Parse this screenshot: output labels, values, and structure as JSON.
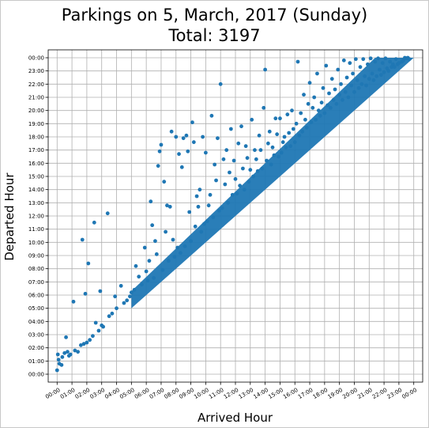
{
  "chart_data": {
    "type": "scatter",
    "title": "Parkings on 5, March, 2017 (Sunday)",
    "subtitle": "Total: 3197",
    "xlabel": "Arrived Hour",
    "ylabel": "Departed Hour",
    "xlim": [
      -0.6,
      24.6
    ],
    "ylim": [
      -0.6,
      24.6
    ],
    "xticks": [
      "00:00",
      "01:00",
      "02:00",
      "03:00",
      "04:00",
      "05:00",
      "06:00",
      "07:00",
      "08:00",
      "09:00",
      "10:00",
      "11:00",
      "12:00",
      "13:00",
      "14:00",
      "15:00",
      "16:00",
      "17:00",
      "18:00",
      "19:00",
      "20:00",
      "21:00",
      "22:00",
      "23:00",
      "00:00"
    ],
    "yticks": [
      "00:00",
      "01:00",
      "02:00",
      "03:00",
      "04:00",
      "05:00",
      "06:00",
      "07:00",
      "08:00",
      "09:00",
      "10:00",
      "11:00",
      "12:00",
      "13:00",
      "14:00",
      "15:00",
      "16:00",
      "17:00",
      "18:00",
      "19:00",
      "20:00",
      "21:00",
      "22:00",
      "23:00",
      "00:00"
    ],
    "grid": true,
    "series": [
      {
        "color": "#1f77b4",
        "points": [
          [
            0.0,
            0.3
          ],
          [
            0.05,
            1.5
          ],
          [
            0.1,
            1.1
          ],
          [
            0.15,
            0.8
          ],
          [
            0.3,
            0.7
          ],
          [
            0.35,
            1.3
          ],
          [
            0.5,
            1.6
          ],
          [
            0.6,
            2.8
          ],
          [
            0.7,
            1.7
          ],
          [
            0.8,
            1.4
          ],
          [
            0.9,
            1.5
          ],
          [
            1.1,
            5.5
          ],
          [
            1.2,
            1.8
          ],
          [
            1.4,
            1.7
          ],
          [
            1.6,
            2.2
          ],
          [
            1.7,
            10.2
          ],
          [
            1.8,
            2.3
          ],
          [
            1.9,
            6.1
          ],
          [
            2.0,
            2.4
          ],
          [
            2.1,
            8.4
          ],
          [
            2.2,
            2.6
          ],
          [
            2.4,
            2.9
          ],
          [
            2.5,
            11.5
          ],
          [
            2.6,
            3.9
          ],
          [
            2.8,
            3.3
          ],
          [
            2.9,
            6.3
          ],
          [
            3.0,
            3.7
          ],
          [
            3.1,
            3.6
          ],
          [
            3.4,
            12.2
          ],
          [
            3.5,
            4.4
          ],
          [
            3.7,
            4.6
          ],
          [
            3.9,
            5.9
          ],
          [
            4.0,
            5.0
          ],
          [
            4.3,
            6.7
          ],
          [
            4.5,
            5.4
          ],
          [
            4.7,
            5.6
          ],
          [
            4.9,
            5.9
          ],
          [
            5.0,
            6.2
          ],
          [
            5.2,
            6.4
          ],
          [
            5.3,
            8.2
          ],
          [
            5.5,
            7.4
          ],
          [
            5.7,
            6.8
          ],
          [
            5.9,
            9.6
          ],
          [
            6.0,
            7.8
          ],
          [
            6.1,
            7.1
          ],
          [
            6.2,
            8.6
          ],
          [
            6.3,
            13.1
          ],
          [
            6.4,
            11.3
          ],
          [
            6.5,
            7.3
          ],
          [
            6.6,
            10.1
          ],
          [
            6.7,
            9.1
          ],
          [
            6.8,
            15.8
          ],
          [
            6.9,
            16.9
          ],
          [
            7.0,
            17.4
          ],
          [
            7.1,
            7.9
          ],
          [
            7.2,
            14.6
          ],
          [
            7.3,
            10.8
          ],
          [
            7.4,
            12.8
          ],
          [
            7.5,
            8.6
          ],
          [
            7.6,
            12.7
          ],
          [
            7.7,
            18.4
          ],
          [
            7.8,
            10.2
          ],
          [
            7.9,
            8.9
          ],
          [
            8.0,
            18.0
          ],
          [
            8.1,
            9.6
          ],
          [
            8.2,
            16.7
          ],
          [
            8.3,
            9.2
          ],
          [
            8.4,
            15.7
          ],
          [
            8.5,
            17.9
          ],
          [
            8.6,
            9.7
          ],
          [
            8.7,
            18.1
          ],
          [
            8.8,
            16.9
          ],
          [
            8.9,
            12.3
          ],
          [
            9.0,
            10.1
          ],
          [
            9.1,
            19.1
          ],
          [
            9.2,
            17.6
          ],
          [
            9.3,
            11.2
          ],
          [
            9.4,
            13.5
          ],
          [
            9.5,
            12.7
          ],
          [
            9.6,
            14.0
          ],
          [
            9.7,
            10.8
          ],
          [
            9.8,
            18.0
          ],
          [
            9.9,
            11.4
          ],
          [
            10.0,
            16.8
          ],
          [
            10.1,
            11.6
          ],
          [
            10.2,
            12.8
          ],
          [
            10.3,
            13.6
          ],
          [
            10.4,
            19.6
          ],
          [
            10.5,
            11.9
          ],
          [
            10.6,
            15.9
          ],
          [
            10.7,
            14.7
          ],
          [
            10.8,
            17.9
          ],
          [
            10.9,
            12.4
          ],
          [
            11.0,
            22.0
          ],
          [
            11.1,
            12.6
          ],
          [
            11.2,
            16.3
          ],
          [
            11.3,
            14.4
          ],
          [
            11.4,
            17.0
          ],
          [
            11.5,
            13.0
          ],
          [
            11.6,
            15.3
          ],
          [
            11.7,
            18.6
          ],
          [
            11.8,
            13.6
          ],
          [
            11.9,
            16.2
          ],
          [
            12.0,
            14.8
          ],
          [
            12.1,
            13.7
          ],
          [
            12.2,
            17.5
          ],
          [
            12.3,
            14.3
          ],
          [
            12.4,
            18.8
          ],
          [
            12.5,
            15.6
          ],
          [
            12.6,
            14.0
          ],
          [
            12.7,
            17.3
          ],
          [
            12.8,
            16.4
          ],
          [
            12.9,
            14.6
          ],
          [
            13.0,
            15.5
          ],
          [
            13.1,
            19.3
          ],
          [
            13.2,
            15.0
          ],
          [
            13.3,
            17.0
          ],
          [
            13.4,
            16.3
          ],
          [
            13.5,
            15.4
          ],
          [
            13.6,
            18.1
          ],
          [
            13.7,
            17.0
          ],
          [
            13.8,
            15.6
          ],
          [
            13.9,
            20.2
          ],
          [
            14.0,
            23.1
          ],
          [
            14.1,
            16.2
          ],
          [
            14.2,
            17.5
          ],
          [
            14.3,
            18.4
          ],
          [
            14.4,
            15.9
          ],
          [
            14.5,
            17.2
          ],
          [
            14.6,
            16.6
          ],
          [
            14.7,
            19.4
          ],
          [
            14.8,
            18.2
          ],
          [
            14.9,
            16.5
          ],
          [
            15.0,
            19.4
          ],
          [
            15.1,
            16.8
          ],
          [
            15.2,
            17.6
          ],
          [
            15.3,
            18.0
          ],
          [
            15.4,
            17.2
          ],
          [
            15.5,
            19.7
          ],
          [
            15.6,
            18.3
          ],
          [
            15.7,
            17.3
          ],
          [
            15.8,
            20.0
          ],
          [
            15.9,
            18.6
          ],
          [
            16.0,
            17.6
          ],
          [
            16.1,
            19.0
          ],
          [
            16.2,
            23.7
          ],
          [
            16.3,
            18.1
          ],
          [
            16.4,
            19.8
          ],
          [
            16.5,
            18.4
          ],
          [
            16.6,
            21.2
          ],
          [
            16.7,
            19.3
          ],
          [
            16.8,
            18.7
          ],
          [
            16.9,
            20.5
          ],
          [
            17.0,
            22.1
          ],
          [
            17.1,
            19.1
          ],
          [
            17.2,
            20.2
          ],
          [
            17.3,
            21.0
          ],
          [
            17.4,
            19.3
          ],
          [
            17.5,
            22.8
          ],
          [
            17.6,
            20.0
          ],
          [
            17.7,
            19.6
          ],
          [
            17.8,
            20.6
          ],
          [
            17.9,
            21.7
          ],
          [
            18.0,
            19.8
          ],
          [
            18.1,
            23.4
          ],
          [
            18.2,
            20.4
          ],
          [
            18.3,
            21.3
          ],
          [
            18.4,
            20.2
          ],
          [
            18.5,
            22.4
          ],
          [
            18.6,
            20.8
          ],
          [
            18.7,
            21.6
          ],
          [
            18.8,
            20.5
          ],
          [
            18.9,
            23.1
          ],
          [
            19.0,
            21.2
          ],
          [
            19.1,
            22.0
          ],
          [
            19.2,
            20.8
          ],
          [
            19.3,
            23.8
          ],
          [
            19.4,
            21.4
          ],
          [
            19.5,
            22.5
          ],
          [
            19.6,
            21.0
          ],
          [
            19.7,
            23.6
          ],
          [
            19.8,
            21.9
          ],
          [
            19.9,
            22.8
          ],
          [
            20.0,
            21.4
          ],
          [
            20.1,
            23.9
          ],
          [
            20.2,
            22.3
          ],
          [
            20.3,
            21.7
          ],
          [
            20.4,
            23.3
          ],
          [
            20.5,
            22.0
          ],
          [
            20.6,
            23.9
          ],
          [
            20.7,
            22.6
          ],
          [
            20.8,
            21.9
          ],
          [
            20.9,
            23.5
          ],
          [
            21.0,
            22.4
          ],
          [
            21.1,
            23.95
          ],
          [
            21.2,
            22.8
          ],
          [
            21.3,
            22.3
          ],
          [
            21.4,
            23.7
          ],
          [
            21.5,
            22.6
          ],
          [
            21.6,
            23.95
          ],
          [
            21.7,
            23.1
          ],
          [
            21.8,
            22.7
          ],
          [
            21.9,
            23.6
          ],
          [
            22.0,
            22.9
          ],
          [
            22.1,
            23.95
          ],
          [
            22.2,
            23.2
          ],
          [
            22.3,
            23.0
          ],
          [
            22.4,
            23.7
          ],
          [
            22.5,
            23.3
          ],
          [
            22.6,
            23.5
          ],
          [
            22.7,
            23.3
          ],
          [
            22.8,
            23.9
          ],
          [
            22.9,
            23.5
          ],
          [
            23.0,
            23.6
          ],
          [
            23.2,
            23.7
          ],
          [
            23.3,
            23.8
          ],
          [
            23.4,
            24.0
          ],
          [
            23.5,
            23.95
          ],
          [
            23.6,
            24.0
          ],
          [
            23.7,
            23.9
          ]
        ],
        "band_width_hours": 2.6
      }
    ]
  }
}
